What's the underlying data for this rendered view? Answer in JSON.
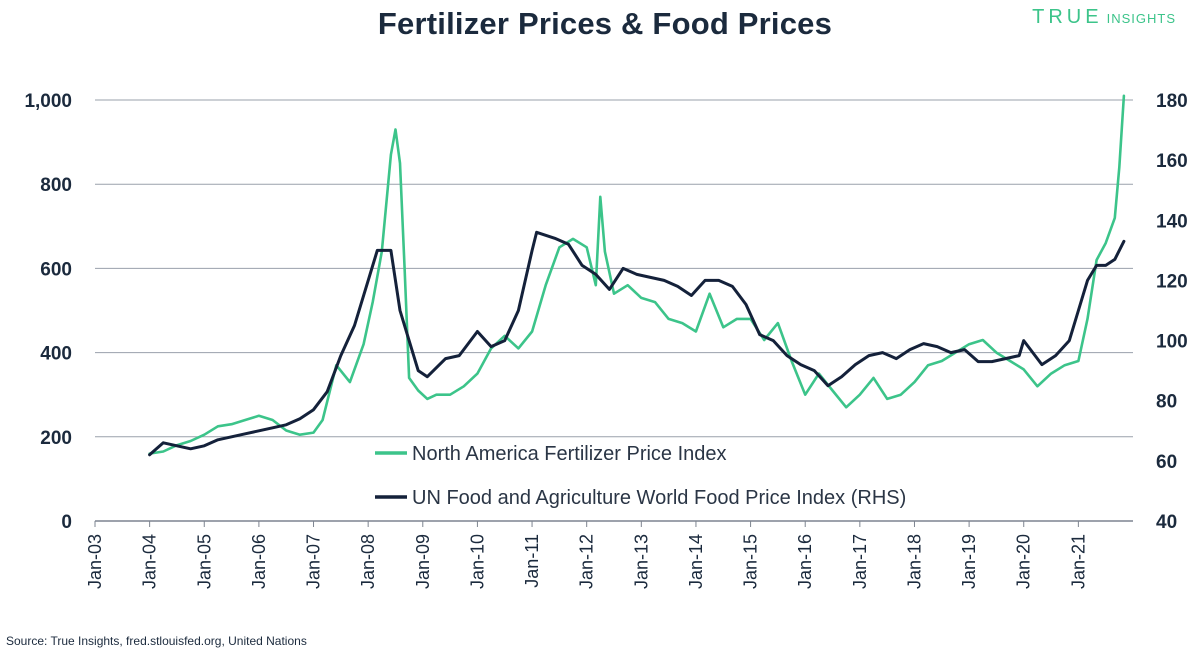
{
  "header": {
    "title": "Fertilizer Prices & Food Prices",
    "brand_true": "TRUE",
    "brand_insights": "INSIGHTS"
  },
  "footer": {
    "source": "Source: True Insights, fred.stlouisfed.org, United Nations"
  },
  "colors": {
    "fertilizer": "#3cc48a",
    "food": "#14213a",
    "grid": "#9aa1ab",
    "text": "#1b2a3d"
  },
  "chart_data": {
    "type": "line",
    "title": "Fertilizer Prices & Food Prices",
    "x_tick_labels": [
      "Jan-03",
      "Jan-04",
      "Jan-05",
      "Jan-06",
      "Jan-07",
      "Jan-08",
      "Jan-09",
      "Jan-10",
      "Jan-11",
      "Jan-12",
      "Jan-13",
      "Jan-14",
      "Jan-15",
      "Jan-16",
      "Jan-17",
      "Jan-18",
      "Jan-19",
      "Jan-20",
      "Jan-21"
    ],
    "y_left": {
      "ticks": [
        0,
        200,
        400,
        600,
        800,
        1000
      ],
      "tick_labels": [
        "0",
        "200",
        "400",
        "600",
        "800",
        "1,000"
      ],
      "ylim": [
        0,
        1000
      ]
    },
    "y_right": {
      "ticks": [
        40,
        60,
        80,
        100,
        120,
        140,
        160,
        180
      ],
      "tick_labels": [
        "40",
        "60",
        "80",
        "100",
        "120",
        "140",
        "160",
        "180"
      ],
      "ylim": [
        40,
        180
      ]
    },
    "grid": "horizontal",
    "legend_position": "bottom-center",
    "series": [
      {
        "name": "North America Fertilizer Price Index",
        "axis": "left",
        "x": [
          "2004-01",
          "2004-04",
          "2004-07",
          "2004-10",
          "2005-01",
          "2005-04",
          "2005-07",
          "2005-10",
          "2006-01",
          "2006-04",
          "2006-07",
          "2006-10",
          "2007-01",
          "2007-03",
          "2007-06",
          "2007-09",
          "2007-12",
          "2008-02",
          "2008-04",
          "2008-06",
          "2008-07",
          "2008-08",
          "2008-09",
          "2008-10",
          "2008-12",
          "2009-02",
          "2009-04",
          "2009-07",
          "2009-10",
          "2010-01",
          "2010-04",
          "2010-07",
          "2010-10",
          "2011-01",
          "2011-04",
          "2011-07",
          "2011-10",
          "2012-01",
          "2012-03",
          "2012-04",
          "2012-05",
          "2012-07",
          "2012-10",
          "2013-01",
          "2013-04",
          "2013-07",
          "2013-10",
          "2014-01",
          "2014-04",
          "2014-07",
          "2014-10",
          "2015-01",
          "2015-04",
          "2015-07",
          "2015-10",
          "2016-01",
          "2016-04",
          "2016-07",
          "2016-10",
          "2017-01",
          "2017-04",
          "2017-07",
          "2017-10",
          "2018-01",
          "2018-04",
          "2018-07",
          "2018-10",
          "2019-01",
          "2019-04",
          "2019-07",
          "2019-10",
          "2020-01",
          "2020-04",
          "2020-07",
          "2020-10",
          "2021-01",
          "2021-03",
          "2021-05",
          "2021-07",
          "2021-09",
          "2021-10",
          "2021-11"
        ],
        "values": [
          160,
          165,
          180,
          190,
          205,
          225,
          230,
          240,
          250,
          240,
          215,
          205,
          210,
          240,
          370,
          330,
          420,
          520,
          640,
          870,
          930,
          850,
          600,
          340,
          310,
          290,
          300,
          300,
          320,
          350,
          410,
          440,
          410,
          450,
          560,
          650,
          670,
          650,
          560,
          770,
          640,
          540,
          560,
          530,
          520,
          480,
          470,
          450,
          540,
          460,
          480,
          480,
          430,
          470,
          380,
          300,
          350,
          310,
          270,
          300,
          340,
          290,
          300,
          330,
          370,
          380,
          400,
          420,
          430,
          400,
          380,
          360,
          320,
          350,
          370,
          380,
          480,
          620,
          660,
          720,
          840,
          1010
        ],
        "color": "#3cc48a"
      },
      {
        "name": "UN Food and Agriculture World Food Price Index (RHS)",
        "axis": "right",
        "x": [
          "2004-01",
          "2004-04",
          "2004-07",
          "2004-10",
          "2005-01",
          "2005-04",
          "2005-07",
          "2005-10",
          "2006-01",
          "2006-04",
          "2006-07",
          "2006-10",
          "2007-01",
          "2007-04",
          "2007-07",
          "2007-10",
          "2008-01",
          "2008-03",
          "2008-06",
          "2008-08",
          "2008-10",
          "2008-12",
          "2009-02",
          "2009-06",
          "2009-09",
          "2010-01",
          "2010-04",
          "2010-07",
          "2010-10",
          "2011-01",
          "2011-02",
          "2011-06",
          "2011-09",
          "2011-12",
          "2012-03",
          "2012-06",
          "2012-09",
          "2012-12",
          "2013-03",
          "2013-06",
          "2013-09",
          "2013-12",
          "2014-03",
          "2014-06",
          "2014-09",
          "2014-12",
          "2015-03",
          "2015-06",
          "2015-09",
          "2015-12",
          "2016-03",
          "2016-06",
          "2016-09",
          "2016-12",
          "2017-03",
          "2017-06",
          "2017-09",
          "2017-12",
          "2018-03",
          "2018-06",
          "2018-09",
          "2018-12",
          "2019-03",
          "2019-06",
          "2019-09",
          "2019-12",
          "2020-01",
          "2020-03",
          "2020-05",
          "2020-08",
          "2020-11",
          "2021-01",
          "2021-03",
          "2021-05",
          "2021-07",
          "2021-09",
          "2021-11"
        ],
        "values": [
          62,
          66,
          65,
          64,
          65,
          67,
          68,
          69,
          70,
          71,
          72,
          74,
          77,
          83,
          95,
          105,
          120,
          130,
          130,
          110,
          100,
          90,
          88,
          94,
          95,
          103,
          98,
          100,
          110,
          130,
          136,
          134,
          132,
          125,
          122,
          117,
          124,
          122,
          121,
          120,
          118,
          115,
          120,
          120,
          118,
          112,
          102,
          100,
          95,
          92,
          90,
          85,
          88,
          92,
          95,
          96,
          94,
          97,
          99,
          98,
          96,
          97,
          93,
          93,
          94,
          95,
          100,
          96,
          92,
          95,
          100,
          110,
          120,
          125,
          125,
          127,
          133
        ],
        "color": "#14213a"
      }
    ]
  }
}
